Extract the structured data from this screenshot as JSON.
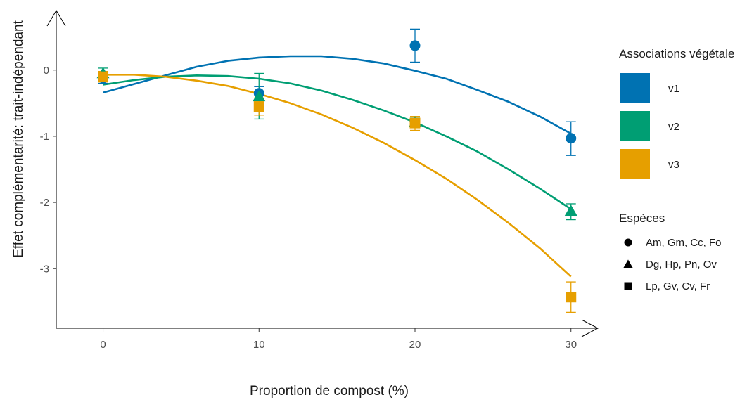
{
  "chart_data": {
    "type": "scatter",
    "xlabel": "Proportion de compost (%)",
    "ylabel": "Effet complémentarité: trait-indépendant",
    "xlim": [
      -3,
      31.5
    ],
    "ylim": [
      -3.9,
      0.9
    ],
    "x_ticks": [
      0,
      10,
      20,
      30
    ],
    "y_ticks": [
      0,
      -1,
      -2,
      -3
    ],
    "grid": false,
    "legend_position": "right",
    "colors": {
      "v1": "#0072B2",
      "v2": "#009E73",
      "v3": "#E69F00"
    },
    "legend_associations": {
      "title": "Associations végétale",
      "items": [
        {
          "label": "v1",
          "color": "#0072B2"
        },
        {
          "label": "v2",
          "color": "#009E73"
        },
        {
          "label": "v3",
          "color": "#E69F00"
        }
      ]
    },
    "legend_species": {
      "title": "Espèces",
      "items": [
        {
          "label": "Am, Gm, Cc, Fo",
          "shape": "circle"
        },
        {
          "label": "Dg, Hp, Pn, Ov",
          "shape": "triangle"
        },
        {
          "label": "Lp, Gv, Cv, Fr",
          "shape": "square"
        }
      ]
    },
    "series": [
      {
        "group": "v1",
        "species": "Am, Gm, Cc, Fo",
        "shape": "circle",
        "color": "#0072B2",
        "points": [
          {
            "x": 0,
            "y": -0.12,
            "lo": -0.2,
            "hi": -0.04
          },
          {
            "x": 10,
            "y": -0.35,
            "lo": -0.45,
            "hi": -0.25
          },
          {
            "x": 20,
            "y": 0.37,
            "lo": 0.12,
            "hi": 0.62
          },
          {
            "x": 30,
            "y": -1.03,
            "lo": -1.29,
            "hi": -0.78
          }
        ],
        "curve": [
          {
            "x": 0,
            "y": -0.34
          },
          {
            "x": 2,
            "y": -0.21
          },
          {
            "x": 4,
            "y": -0.08
          },
          {
            "x": 6,
            "y": 0.05
          },
          {
            "x": 8,
            "y": 0.14
          },
          {
            "x": 10,
            "y": 0.19
          },
          {
            "x": 12,
            "y": 0.21
          },
          {
            "x": 14,
            "y": 0.21
          },
          {
            "x": 16,
            "y": 0.17
          },
          {
            "x": 18,
            "y": 0.1
          },
          {
            "x": 20,
            "y": -0.01
          },
          {
            "x": 22,
            "y": -0.13
          },
          {
            "x": 24,
            "y": -0.3
          },
          {
            "x": 26,
            "y": -0.48
          },
          {
            "x": 28,
            "y": -0.7
          },
          {
            "x": 30,
            "y": -0.96
          }
        ]
      },
      {
        "group": "v2",
        "species": "Dg, Hp, Pn, Ov",
        "shape": "triangle",
        "color": "#009E73",
        "points": [
          {
            "x": 0,
            "y": -0.05,
            "lo": -0.13,
            "hi": 0.03
          },
          {
            "x": 10,
            "y": -0.4,
            "lo": -0.74,
            "hi": -0.05
          },
          {
            "x": 20,
            "y": -0.79,
            "lo": -0.87,
            "hi": -0.71
          },
          {
            "x": 30,
            "y": -2.13,
            "lo": -2.26,
            "hi": -2.02
          }
        ],
        "curve": [
          {
            "x": 0,
            "y": -0.22
          },
          {
            "x": 2,
            "y": -0.15
          },
          {
            "x": 4,
            "y": -0.1
          },
          {
            "x": 6,
            "y": -0.08
          },
          {
            "x": 8,
            "y": -0.09
          },
          {
            "x": 10,
            "y": -0.13
          },
          {
            "x": 12,
            "y": -0.2
          },
          {
            "x": 14,
            "y": -0.31
          },
          {
            "x": 16,
            "y": -0.45
          },
          {
            "x": 18,
            "y": -0.61
          },
          {
            "x": 20,
            "y": -0.79
          },
          {
            "x": 22,
            "y": -1.0
          },
          {
            "x": 24,
            "y": -1.23
          },
          {
            "x": 26,
            "y": -1.5
          },
          {
            "x": 28,
            "y": -1.79
          },
          {
            "x": 30,
            "y": -2.1
          }
        ]
      },
      {
        "group": "v3",
        "species": "Lp, Gv, Cv, Fr",
        "shape": "square",
        "color": "#E69F00",
        "points": [
          {
            "x": 0,
            "y": -0.1,
            "lo": -0.18,
            "hi": -0.02
          },
          {
            "x": 10,
            "y": -0.55,
            "lo": -0.68,
            "hi": -0.42
          },
          {
            "x": 20,
            "y": -0.8,
            "lo": -0.91,
            "hi": -0.7
          },
          {
            "x": 30,
            "y": -3.43,
            "lo": -3.66,
            "hi": -3.2
          }
        ],
        "curve": [
          {
            "x": 0,
            "y": -0.07
          },
          {
            "x": 2,
            "y": -0.07
          },
          {
            "x": 4,
            "y": -0.1
          },
          {
            "x": 6,
            "y": -0.16
          },
          {
            "x": 8,
            "y": -0.24
          },
          {
            "x": 10,
            "y": -0.36
          },
          {
            "x": 12,
            "y": -0.5
          },
          {
            "x": 14,
            "y": -0.67
          },
          {
            "x": 16,
            "y": -0.87
          },
          {
            "x": 18,
            "y": -1.1
          },
          {
            "x": 20,
            "y": -1.36
          },
          {
            "x": 22,
            "y": -1.64
          },
          {
            "x": 24,
            "y": -1.96
          },
          {
            "x": 26,
            "y": -2.31
          },
          {
            "x": 28,
            "y": -2.69
          },
          {
            "x": 30,
            "y": -3.12
          }
        ]
      }
    ]
  }
}
